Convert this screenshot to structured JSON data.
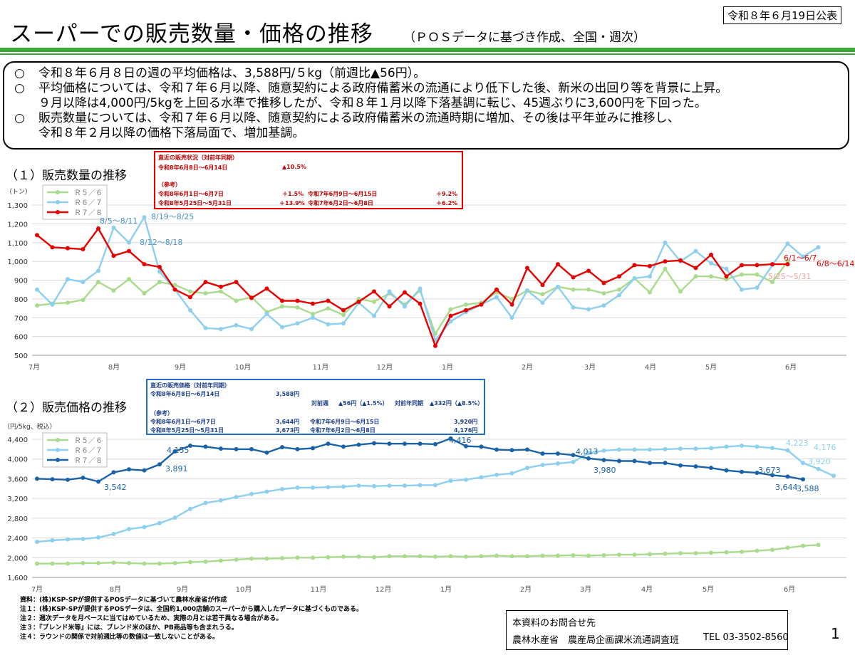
{
  "header": {
    "title": "スーパーでの販売数量・価格の推移",
    "subtitle": "（ＰＯＳデータに基づき作成、全国・週次）",
    "published": "令和８年６月19日公表"
  },
  "summary": [
    {
      "mark": "○",
      "text": "令和８年６月８日の週の平均価格は、3,588円/５kg（前週比▲56円）。"
    },
    {
      "mark": "○",
      "text": "平均価格については、令和７年６月以降、随意契約による政府備蓄米の流通により低下した後、新米の出回り等を背景に上昇。"
    },
    {
      "mark": "",
      "text": "９月以降は4,000円/5kgを上回る水準で推移したが、令和８年１月以降下落基調に転じ、45週ぶりに3,600円を下回った。"
    },
    {
      "mark": "○",
      "text": "販売数量については、令和７年６月以降、随意契約による政府備蓄米の流通時期に増加、その後は平年並みに推移し、"
    },
    {
      "mark": "",
      "text": "令和８年２月以降の価格下落局面で、増加基調。"
    }
  ],
  "section1_title": "（１）販売数量の推移",
  "section2_title": "（２）販売価格の推移",
  "qty_box": {
    "heading": "直近の販売状況（対前年同期）",
    "row1_label": "令和8年6月8日～6月14日",
    "row1_value": "▲10.5%",
    "ref": "（参考）",
    "row2_label": "令和8年6月1日～6月7日",
    "row2_value": "＋1.5%",
    "row2_prev_label": "令和7年6月9日～6月15日",
    "row2_prev_value": "＋9.2%",
    "row3_label": "令和8年5月25日～5月31日",
    "row3_value": "＋13.9%",
    "row3_prev_label": "令和7年6月2日～6月8日",
    "row3_prev_value": "＋6.2%"
  },
  "price_box": {
    "heading": "直近の販売価格（対前年同期）",
    "row1_label": "令和8年6月8日～6月14日",
    "row1_value": "3,588円",
    "wow_label": "対前週",
    "wow_value": "▲56円（▲1.5%）",
    "yoy_label": "対前年同期",
    "yoy_value": "▲332円（▲8.5%）",
    "ref": "（参考）",
    "row2_label": "令和8年6月1日～6月7日",
    "row2_value": "3,644円",
    "row2_prev_label": "令和7年6月9日～6月15日",
    "row2_prev_value": "3,920円",
    "row3_label": "令和8年5月25日～5月31日",
    "row3_value": "3,673円",
    "row3_prev_label": "令和7年6月2日～6月8日",
    "row3_prev_value": "4,176円"
  },
  "chart_data": [
    {
      "type": "line",
      "title": "販売数量の推移",
      "ylabel": "（トン）",
      "ylim": [
        500,
        1300
      ],
      "yticks": [
        "500",
        "600",
        "700",
        "800",
        "900",
        "1,000",
        "1,100",
        "1,200",
        "1,300"
      ],
      "month_labels": [
        "7月",
        "8月",
        "9月",
        "10月",
        "11月",
        "12月",
        "1月",
        "2月",
        "3月",
        "4月",
        "5月",
        "6月"
      ],
      "grid": true,
      "legend_position": "top-left",
      "series": [
        {
          "name": "Ｒ５／６",
          "color": "#a8dc8c",
          "values": [
            765,
            775,
            780,
            795,
            890,
            845,
            905,
            830,
            890,
            875,
            840,
            830,
            840,
            790,
            810,
            730,
            760,
            755,
            720,
            750,
            715,
            800,
            785,
            830,
            770,
            845,
            615,
            745,
            770,
            780,
            835,
            800,
            845,
            825,
            865,
            850,
            850,
            830,
            850,
            910,
            835,
            960,
            840,
            920,
            920,
            905,
            930,
            930,
            890,
            1000
          ]
        },
        {
          "name": "Ｒ６／７",
          "color": "#8ccfee",
          "values": [
            850,
            770,
            905,
            890,
            950,
            1180,
            1100,
            1235,
            945,
            850,
            740,
            645,
            640,
            660,
            640,
            720,
            650,
            670,
            700,
            665,
            670,
            780,
            710,
            840,
            760,
            855,
            580,
            680,
            730,
            770,
            810,
            700,
            845,
            780,
            865,
            755,
            745,
            765,
            820,
            910,
            920,
            1100,
            1000,
            1055,
            990,
            960,
            850,
            860,
            980,
            1095,
            1025,
            1075
          ]
        },
        {
          "name": "Ｒ７／８",
          "color": "#e60000",
          "values": [
            1140,
            1075,
            1070,
            1065,
            1175,
            1030,
            1055,
            985,
            970,
            850,
            810,
            890,
            865,
            890,
            805,
            855,
            790,
            790,
            775,
            790,
            740,
            785,
            840,
            760,
            835,
            775,
            550,
            710,
            740,
            770,
            850,
            770,
            965,
            875,
            985,
            915,
            950,
            885,
            920,
            980,
            975,
            1000,
            1005,
            965,
            1035,
            920,
            980,
            980,
            985,
            985
          ]
        }
      ],
      "annotations": [
        "8/5～8/11",
        "8/12～8/18",
        "8/19～8/25",
        "6/1～6/7",
        "6/8～6/14",
        "5/25～5/31"
      ]
    },
    {
      "type": "line",
      "title": "販売価格の推移",
      "ylabel": "（円/5kg、税込）",
      "ylim": [
        1600,
        4400
      ],
      "yticks": [
        "1,600",
        "2,000",
        "2,400",
        "2,800",
        "3,200",
        "3,600",
        "4,000",
        "4,400"
      ],
      "month_labels": [
        "7月",
        "8月",
        "9月",
        "10月",
        "11月",
        "12月",
        "1月",
        "2月",
        "3月",
        "4月",
        "5月",
        "6月"
      ],
      "grid": true,
      "legend_position": "top-left",
      "series": [
        {
          "name": "Ｒ５／６",
          "color": "#a8dc8c",
          "values": [
            1880,
            1880,
            1880,
            1890,
            1890,
            1900,
            1890,
            1880,
            1880,
            1890,
            1910,
            1920,
            1940,
            1960,
            1980,
            1980,
            1990,
            2000,
            2000,
            2010,
            2020,
            2020,
            2010,
            2030,
            2030,
            2030,
            2020,
            2030,
            2020,
            2030,
            2040,
            2030,
            2030,
            2040,
            2040,
            2050,
            2040,
            2050,
            2060,
            2060,
            2070,
            2080,
            2090,
            2090,
            2100,
            2110,
            2120,
            2140,
            2160,
            2200,
            2240,
            2260
          ]
        },
        {
          "name": "Ｒ６／７",
          "color": "#8ccfee",
          "values": [
            2320,
            2350,
            2370,
            2380,
            2410,
            2480,
            2580,
            2620,
            2700,
            2810,
            2990,
            3110,
            3160,
            3230,
            3290,
            3340,
            3390,
            3420,
            3420,
            3430,
            3440,
            3460,
            3450,
            3460,
            3460,
            3470,
            3470,
            3560,
            3580,
            3630,
            3680,
            3710,
            3820,
            3880,
            3910,
            3940,
            4120,
            4170,
            4190,
            4190,
            4190,
            4200,
            4210,
            4210,
            4220,
            4250,
            4270,
            4250,
            4223,
            4176,
            3920,
            3800,
            3660
          ]
        },
        {
          "name": "Ｒ７／８",
          "color": "#1a62a8",
          "values": [
            3600,
            3590,
            3580,
            3620,
            3542,
            3730,
            3790,
            3770,
            3891,
            4155,
            4270,
            4250,
            4210,
            4200,
            4200,
            4130,
            4240,
            4200,
            4220,
            4310,
            4250,
            4290,
            4320,
            4310,
            4310,
            4310,
            4300,
            4416,
            4260,
            4250,
            4190,
            4180,
            4190,
            4110,
            4110,
            4080,
            4013,
            3980,
            3960,
            3960,
            3920,
            3920,
            3870,
            3850,
            3820,
            3770,
            3740,
            3720,
            3673,
            3644,
            3588
          ]
        }
      ],
      "data_labels": [
        "3,542",
        "3,891",
        "4,155",
        "4,416",
        "4,013",
        "3,980",
        "3,673",
        "3,644",
        "3,588",
        "4,223",
        "4,176",
        "3,920"
      ]
    }
  ],
  "footnotes": [
    "資料：(株)KSP-SPが提供するPOSデータに基づいて農林水産省が作成",
    "注１：(株)KSP-SPが提供するPOSデータは、全国約1,000店舗のスーパーから購入したデータに基づくものである。",
    "注２：週次データを月ベースに当てはめているため、実際の月とは若干異なる場合がある。",
    "注３：『ブレンド米等』には、ブレンド米のほか、PB商品等も含まれうる。",
    "注４：ラウンドの関係で対前週比等の数値は一致しないことがある。"
  ],
  "contact": {
    "heading": "本資料のお問合せ先",
    "org": "農林水産省　農産局企画課米流通調査班",
    "tel": "TEL 03-3502-8560"
  },
  "page_number": "1"
}
